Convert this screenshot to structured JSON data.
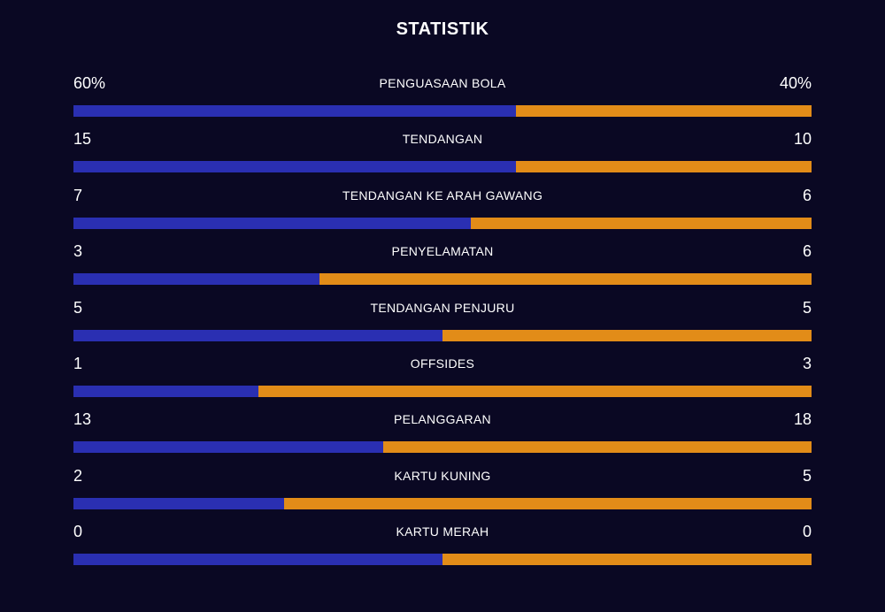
{
  "title": "STATISTIK",
  "colors": {
    "background": "#0a0823",
    "home": "#2a2fb2",
    "away": "#e28c18",
    "text": "#ffffff"
  },
  "stats": [
    {
      "label": "PENGUASAAN BOLA",
      "home": "60%",
      "away": "40%",
      "home_share": 0.6
    },
    {
      "label": "TENDANGAN",
      "home": "15",
      "away": "10",
      "home_share": 0.6
    },
    {
      "label": "TENDANGAN KE ARAH GAWANG",
      "home": "7",
      "away": "6",
      "home_share": 0.5385
    },
    {
      "label": "PENYELAMATAN",
      "home": "3",
      "away": "6",
      "home_share": 0.3333
    },
    {
      "label": "TENDANGAN PENJURU",
      "home": "5",
      "away": "5",
      "home_share": 0.5
    },
    {
      "label": "OFFSIDES",
      "home": "1",
      "away": "3",
      "home_share": 0.25
    },
    {
      "label": "PELANGGARAN",
      "home": "13",
      "away": "18",
      "home_share": 0.4194
    },
    {
      "label": "KARTU KUNING",
      "home": "2",
      "away": "5",
      "home_share": 0.2857
    },
    {
      "label": "KARTU MERAH",
      "home": "0",
      "away": "0",
      "home_share": 0.5
    }
  ]
}
